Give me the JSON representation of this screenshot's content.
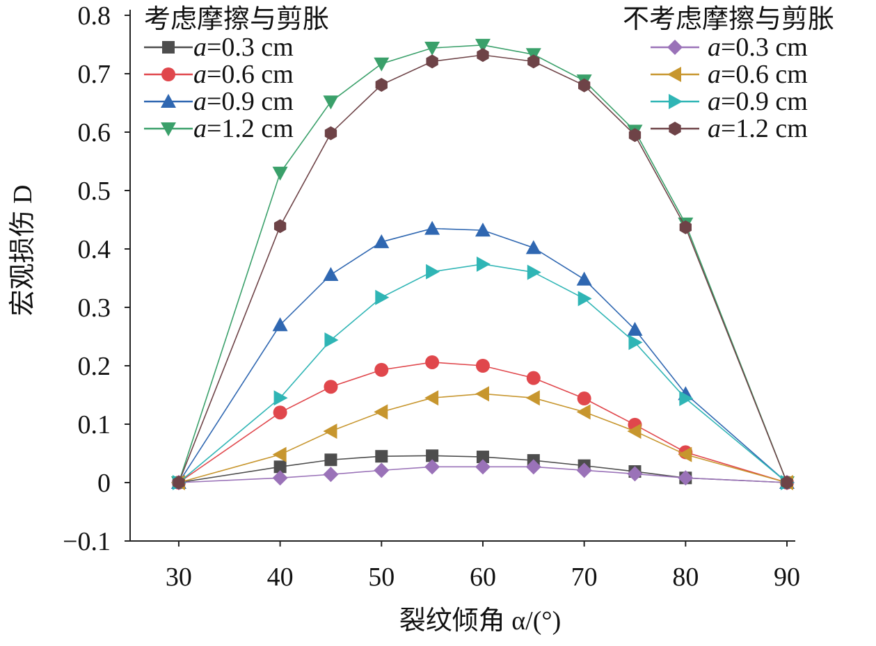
{
  "chart_data": {
    "type": "line",
    "title": "",
    "xlabel": "裂纹倾角 α/(°)",
    "ylabel": "宏观损伤 D",
    "xlim": [
      25.2,
      90
    ],
    "ylim": [
      -0.1,
      0.8
    ],
    "xticks": [
      30,
      40,
      50,
      60,
      70,
      80,
      90
    ],
    "yticks": [
      -0.1,
      0,
      0.1,
      0.2,
      0.3,
      0.4,
      0.5,
      0.6,
      0.7,
      0.8
    ],
    "ytick_labels": [
      "−0.1",
      "0",
      "0.1",
      "0.2",
      "0.3",
      "0.4",
      "0.5",
      "0.6",
      "0.7",
      "0.8"
    ],
    "grid": false,
    "x": [
      30,
      40,
      45,
      50,
      55,
      60,
      65,
      70,
      75,
      80,
      90
    ],
    "legend_groups": [
      {
        "title": "考虑摩擦与剪胀",
        "placement": "top-left"
      },
      {
        "title": "不考虑摩擦与剪胀",
        "placement": "top-right"
      }
    ],
    "series": [
      {
        "name": "a=0.3 cm",
        "group": 0,
        "color": "#4d4d4d",
        "marker": "square",
        "values": [
          0,
          0.027,
          0.039,
          0.045,
          0.046,
          0.044,
          0.038,
          0.029,
          0.019,
          0.008,
          0
        ]
      },
      {
        "name": "a=0.6 cm",
        "group": 0,
        "color": "#e0474c",
        "marker": "circle",
        "values": [
          0,
          0.12,
          0.164,
          0.193,
          0.206,
          0.2,
          0.179,
          0.144,
          0.099,
          0.052,
          0
        ]
      },
      {
        "name": "a=0.9 cm",
        "group": 0,
        "color": "#2f67b1",
        "marker": "triangle-up",
        "values": [
          0,
          0.27,
          0.356,
          0.412,
          0.435,
          0.432,
          0.402,
          0.348,
          0.262,
          0.152,
          0
        ]
      },
      {
        "name": "a=1.2 cm",
        "group": 0,
        "color": "#3aa06a",
        "marker": "triangle-down",
        "values": [
          0,
          0.53,
          0.652,
          0.717,
          0.744,
          0.749,
          0.733,
          0.688,
          0.602,
          0.443,
          0
        ]
      },
      {
        "name": "a=0.3 cm",
        "group": 1,
        "color": "#9a72b8",
        "marker": "diamond",
        "values": [
          0,
          0.008,
          0.014,
          0.021,
          0.027,
          0.027,
          0.027,
          0.021,
          0.015,
          0.008,
          0
        ]
      },
      {
        "name": "a=0.6 cm",
        "group": 1,
        "color": "#c7962e",
        "marker": "triangle-left",
        "values": [
          0,
          0.048,
          0.088,
          0.121,
          0.145,
          0.152,
          0.145,
          0.121,
          0.088,
          0.048,
          0
        ]
      },
      {
        "name": "a=0.9 cm",
        "group": 1,
        "color": "#2fb5b5",
        "marker": "triangle-right",
        "values": [
          0,
          0.145,
          0.244,
          0.317,
          0.361,
          0.374,
          0.36,
          0.315,
          0.24,
          0.144,
          0
        ]
      },
      {
        "name": "a=1.2 cm",
        "group": 1,
        "color": "#6e4347",
        "marker": "hexagon",
        "values": [
          0,
          0.439,
          0.598,
          0.681,
          0.721,
          0.732,
          0.721,
          0.68,
          0.595,
          0.437,
          0
        ]
      }
    ]
  }
}
